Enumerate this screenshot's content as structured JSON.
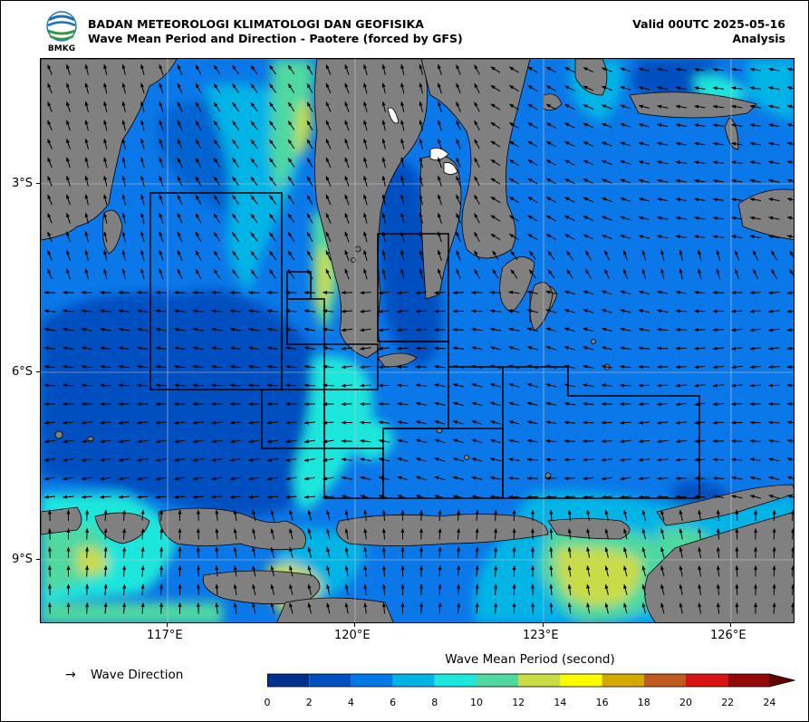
{
  "header": {
    "org_name": "BADAN METEOROLOGI KLIMATOLOGI DAN GEOFISIKA",
    "map_title": "Wave Mean Period and Direction - Paotere (forced by GFS)",
    "valid": "Valid 00UTC 2025-05-16",
    "analysis": "Analysis",
    "logo_text": "BMKG"
  },
  "axes": {
    "lat_ticks": [
      "3°S",
      "6°S",
      "9°S"
    ],
    "lon_ticks": [
      "117°E",
      "120°E",
      "123°E",
      "126°E"
    ],
    "lon_range": [
      114.0,
      126.2
    ],
    "lat_range": [
      -10.3,
      -1.2
    ]
  },
  "legend": {
    "arrow_symbol": "→",
    "arrow_label": "Wave Direction"
  },
  "colorbar": {
    "title": "Wave Mean Period (second)",
    "ticks": [
      "0",
      "2",
      "4",
      "6",
      "8",
      "10",
      "12",
      "14",
      "16",
      "18",
      "20",
      "22",
      "24"
    ],
    "colors": [
      "#00308c",
      "#0050c0",
      "#0078e8",
      "#00b4e6",
      "#1ee6dc",
      "#50d8a0",
      "#c8dc46",
      "#fcfc00",
      "#d2aa00",
      "#c05a1e",
      "#d81414",
      "#940a0a"
    ],
    "extend_color": "#640000"
  },
  "colors": {
    "land": "#808080",
    "background_sea": "#0a78e8",
    "grid": "#c8c8c8"
  }
}
